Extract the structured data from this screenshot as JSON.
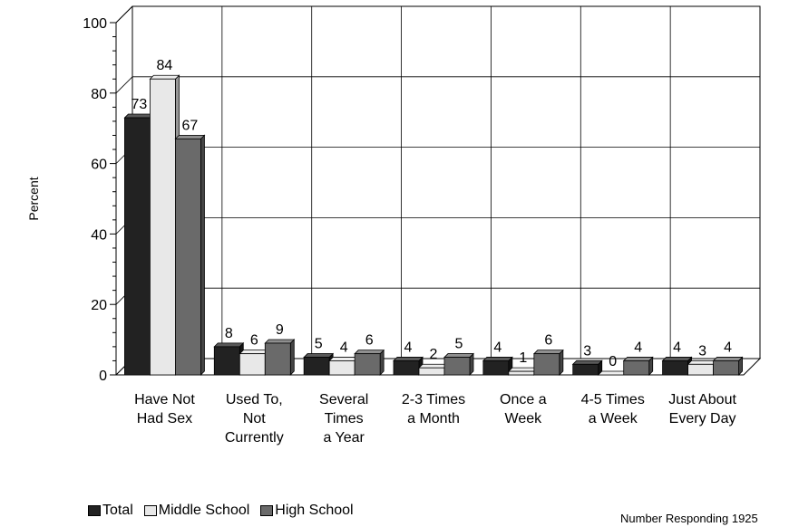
{
  "chart_data": {
    "type": "bar",
    "ylabel": "Percent",
    "ylim": [
      0,
      100
    ],
    "yticks": [
      0,
      20,
      40,
      60,
      80,
      100
    ],
    "grid": true,
    "legend_position": "bottom-left",
    "categories": [
      [
        "Have Not",
        "Had Sex"
      ],
      [
        "Used To,",
        "Not",
        "Currently"
      ],
      [
        "Several",
        "Times",
        "a Year"
      ],
      [
        "2-3 Times",
        "a Month"
      ],
      [
        "Once a",
        "Week"
      ],
      [
        "4-5 Times",
        "a Week"
      ],
      [
        "Just About",
        "Every Day"
      ]
    ],
    "series": [
      {
        "name": "Total",
        "values": [
          73,
          8,
          5,
          4,
          4,
          3,
          4
        ],
        "color": "#222222"
      },
      {
        "name": "Middle School",
        "values": [
          84,
          6,
          4,
          2,
          1,
          0,
          3
        ],
        "color": "#e8e8e8"
      },
      {
        "name": "High School",
        "values": [
          67,
          9,
          6,
          5,
          6,
          4,
          4
        ],
        "color": "#6a6a6a"
      }
    ]
  },
  "footnote": "Number Responding 1925"
}
